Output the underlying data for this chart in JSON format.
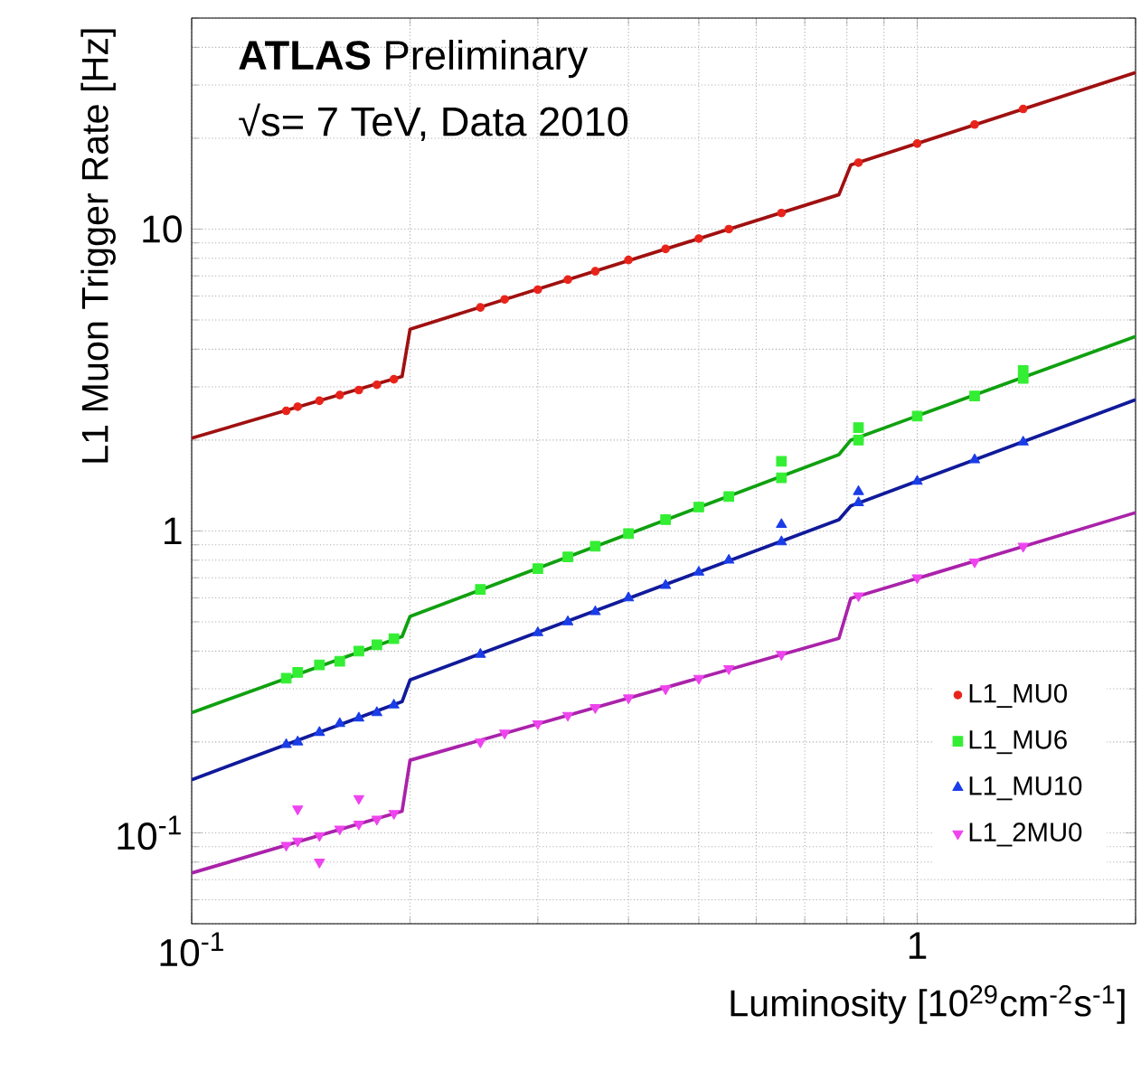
{
  "chart_data": {
    "type": "scatter",
    "xlabel": "Luminosity [10$^{29}$cm$^{-2}$s$^{-1}$]",
    "ylabel": "L1 Muon Trigger Rate [Hz]",
    "annotations": [
      "**ATLAS** Preliminary",
      "√s= 7 TeV, Data 2010"
    ],
    "log": "xy",
    "grid": true,
    "legend": "bottom right",
    "xlim": [
      0.1,
      2
    ],
    "ylim": [
      0.05,
      50
    ],
    "xticks": [
      {
        "value": 0.1,
        "label": "10$^{-1}$"
      },
      1
    ],
    "yticks": [
      {
        "value": 0.1,
        "label": "10$^{-1}$"
      },
      1,
      10
    ],
    "series": [
      {
        "name": "L1_MU0",
        "color": "#e8231a",
        "marker": "circle",
        "x": [
          0.135,
          0.14,
          0.15,
          0.16,
          0.17,
          0.18,
          0.19,
          0.25,
          0.27,
          0.3,
          0.33,
          0.36,
          0.4,
          0.45,
          0.5,
          0.55,
          0.65,
          0.83,
          1.0,
          1.2,
          1.4
        ],
        "values": [
          2.5,
          2.58,
          2.7,
          2.82,
          2.93,
          3.05,
          3.18,
          5.5,
          5.85,
          6.3,
          6.8,
          7.25,
          7.9,
          8.6,
          9.3,
          10.0,
          11.3,
          16.6,
          19.2,
          22.2,
          25.0
        ]
      },
      {
        "name": "L1_MU6",
        "color": "#33ee33",
        "marker": "square",
        "x": [
          0.135,
          0.14,
          0.15,
          0.16,
          0.17,
          0.18,
          0.19,
          0.25,
          0.3,
          0.33,
          0.36,
          0.4,
          0.45,
          0.5,
          0.55,
          0.65,
          0.65,
          0.83,
          0.83,
          1.0,
          1.2,
          1.4,
          1.4
        ],
        "values": [
          0.325,
          0.34,
          0.36,
          0.37,
          0.4,
          0.42,
          0.44,
          0.64,
          0.75,
          0.82,
          0.89,
          0.98,
          1.09,
          1.2,
          1.3,
          1.5,
          1.7,
          2.0,
          2.2,
          2.4,
          2.8,
          3.2,
          3.4
        ]
      },
      {
        "name": "L1_MU10",
        "color": "#1a3de8",
        "marker": "triangle",
        "x": [
          0.135,
          0.14,
          0.15,
          0.16,
          0.17,
          0.18,
          0.19,
          0.25,
          0.3,
          0.33,
          0.36,
          0.4,
          0.45,
          0.5,
          0.55,
          0.65,
          0.65,
          0.83,
          0.83,
          1.0,
          1.2,
          1.4
        ],
        "values": [
          0.196,
          0.2,
          0.215,
          0.23,
          0.24,
          0.25,
          0.265,
          0.39,
          0.46,
          0.5,
          0.54,
          0.6,
          0.66,
          0.73,
          0.8,
          0.92,
          1.05,
          1.24,
          1.35,
          1.46,
          1.72,
          1.97
        ]
      },
      {
        "name": "L1_2MU0",
        "color": "#ee44ee",
        "marker": "triangle_down",
        "x": [
          0.135,
          0.14,
          0.14,
          0.15,
          0.15,
          0.16,
          0.17,
          0.17,
          0.18,
          0.19,
          0.25,
          0.27,
          0.3,
          0.33,
          0.36,
          0.4,
          0.45,
          0.5,
          0.55,
          0.65,
          0.83,
          1.0,
          1.2,
          1.4
        ],
        "values": [
          0.091,
          0.094,
          0.12,
          0.098,
          0.08,
          0.103,
          0.107,
          0.13,
          0.111,
          0.116,
          0.2,
          0.214,
          0.23,
          0.245,
          0.26,
          0.28,
          0.3,
          0.325,
          0.35,
          0.39,
          0.61,
          0.7,
          0.79,
          0.89
        ]
      },
      {
        "type": "line",
        "color": "#a01010",
        "x": [
          0.1,
          0.195,
          0.2,
          0.78,
          0.81,
          2
        ],
        "values": [
          2.03,
          3.25,
          4.66,
          13.0,
          16.3,
          33.0
        ]
      },
      {
        "type": "line",
        "color": "#10a010",
        "x": [
          0.1,
          0.195,
          0.2,
          0.78,
          0.81,
          2
        ],
        "values": [
          0.25,
          0.447,
          0.521,
          1.79,
          2.0,
          4.41
        ]
      },
      {
        "type": "line",
        "color": "#101a9a",
        "x": [
          0.1,
          0.195,
          0.2,
          0.78,
          0.81,
          2
        ],
        "values": [
          0.15,
          0.272,
          0.321,
          1.09,
          1.21,
          2.72
        ]
      },
      {
        "type": "line",
        "color": "#aa22aa",
        "x": [
          0.1,
          0.195,
          0.2,
          0.78,
          0.81,
          2
        ],
        "values": [
          0.0736,
          0.118,
          0.174,
          0.441,
          0.598,
          1.15
        ]
      }
    ]
  }
}
